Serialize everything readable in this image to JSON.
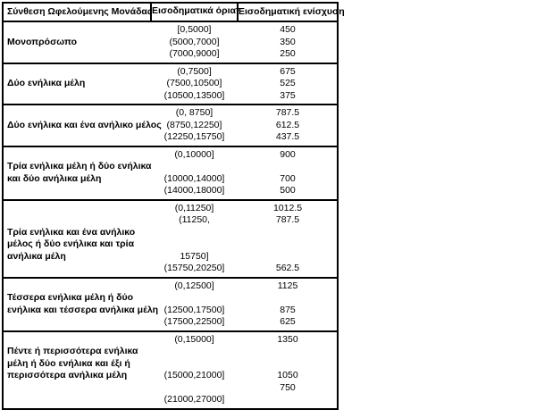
{
  "colors": {
    "background": "#ffffff",
    "border": "#000000",
    "text": "#000000"
  },
  "table": {
    "headers": [
      "Σύνθεση Ωφελούμενης Μονάδας",
      "Εισοδηματικά όρια*",
      "Εισοδηματική ενίσχυση"
    ],
    "groups": [
      {
        "lines": [
          {
            "label": "",
            "interval": "[0,5000]",
            "value": "450"
          },
          {
            "label": "Μονοπρόσωπο",
            "interval": "(5000,7000]",
            "value": "350"
          },
          {
            "label": "",
            "interval": "(7000,9000]",
            "value": "250"
          }
        ]
      },
      {
        "lines": [
          {
            "label": "",
            "interval": "(0,7500]",
            "value": "675"
          },
          {
            "label": "Δύο ενήλικα μέλη",
            "interval": "(7500,10500]",
            "value": "525"
          },
          {
            "label": "",
            "interval": "(10500,13500]",
            "value": "375"
          }
        ]
      },
      {
        "lines": [
          {
            "label": "",
            "interval": "(0, 8750]",
            "value": "787.5"
          },
          {
            "label": "Δύο ενήλικα και ένα ανήλικο μέλος",
            "interval": "(8750,12250]",
            "value": "612.5"
          },
          {
            "label": "",
            "interval": "(12250,15750]",
            "value": "437.5"
          }
        ]
      },
      {
        "lines": [
          {
            "label": "",
            "interval": "(0,10000]",
            "value": "900"
          },
          {
            "label": "Τρία ενήλικα μέλη ή δύο ενήλικα",
            "interval": "",
            "value": ""
          },
          {
            "label": "και δύο ανήλικα μέλη",
            "interval": "(10000,14000]",
            "value": "700"
          },
          {
            "label": "",
            "interval": "(14000,18000]",
            "value": "500"
          }
        ]
      },
      {
        "lines": [
          {
            "label": "",
            "interval": "(0,11250]",
            "value": "1012.5"
          },
          {
            "label": "",
            "interval": "(11250,",
            "value": "787.5"
          },
          {
            "label": "Τρία ενήλικα και ένα ανήλικο",
            "interval": "",
            "value": ""
          },
          {
            "label": "μέλος ή δύο ενήλικα και τρία",
            "interval": "",
            "value": ""
          },
          {
            "label": "ανήλικα μέλη",
            "interval": "15750]",
            "value": ""
          },
          {
            "label": "",
            "interval": "(15750,20250]",
            "value": "562.5"
          }
        ]
      },
      {
        "lines": [
          {
            "label": "",
            "interval": "(0,12500]",
            "value": "1125"
          },
          {
            "label": "Τέσσερα ενήλικα μέλη ή δύο",
            "interval": "",
            "value": ""
          },
          {
            "label": "ενήλικα και τέσσερα ανήλικα μέλη",
            "interval": "(12500,17500]",
            "value": "875"
          },
          {
            "label": "",
            "interval": "(17500,22500]",
            "value": "625"
          }
        ]
      },
      {
        "lines": [
          {
            "label": "",
            "interval": "(0,15000]",
            "value": "1350"
          },
          {
            "label": "Πέντε ή περισσότερα ενήλικα",
            "interval": "",
            "value": ""
          },
          {
            "label": "μέλη ή δύο ενήλικα και έξι ή",
            "interval": "",
            "value": ""
          },
          {
            "label": "περισσότερα ανήλικα μέλη",
            "interval": "(15000,21000]",
            "value": "1050"
          },
          {
            "label": "",
            "interval": "",
            "value": "750"
          },
          {
            "label": "",
            "interval": "(21000,27000]",
            "value": ""
          }
        ]
      }
    ]
  }
}
